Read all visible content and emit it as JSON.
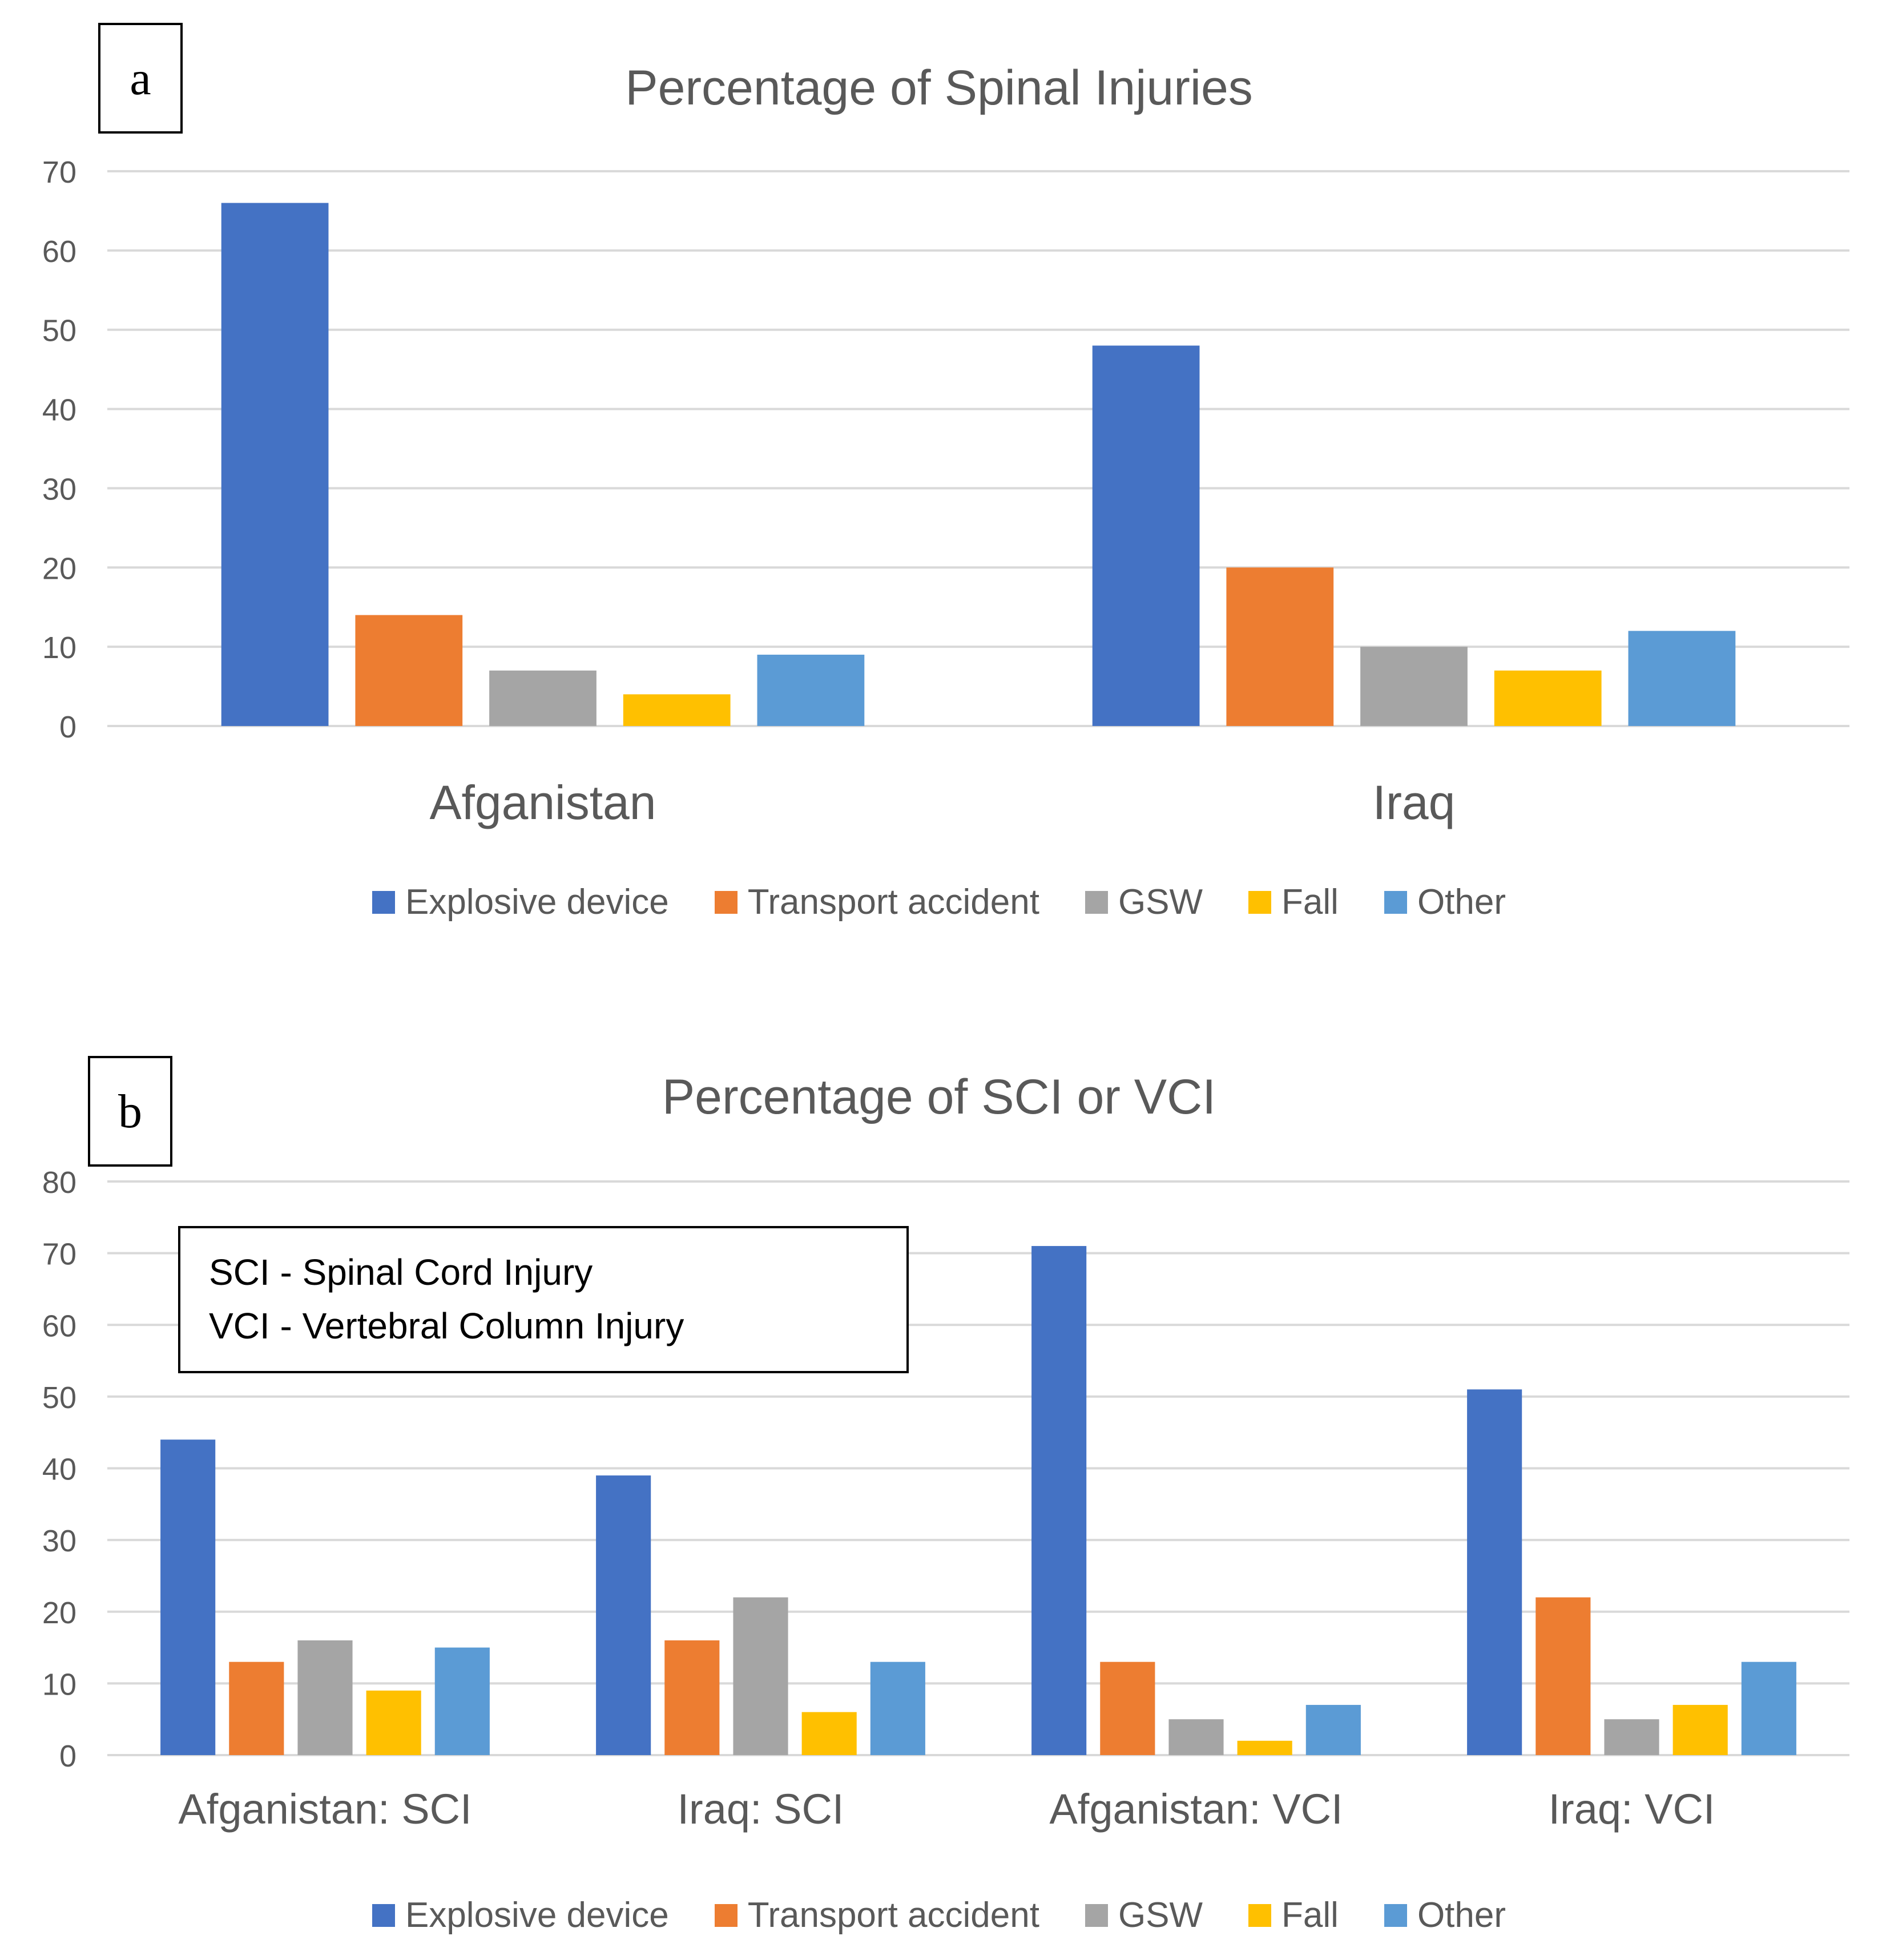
{
  "legend": [
    {
      "name": "Explosive device",
      "color": "#4472C4"
    },
    {
      "name": "Transport accident",
      "color": "#ED7D31"
    },
    {
      "name": "GSW",
      "color": "#A5A5A5"
    },
    {
      "name": "Fall",
      "color": "#FFC000"
    },
    {
      "name": "Other",
      "color": "#5B9BD5"
    }
  ],
  "panels": [
    {
      "label": "a"
    },
    {
      "label": "b",
      "note": [
        "SCI - Spinal Cord Injury",
        "VCI - Vertebral Column Injury"
      ]
    }
  ],
  "chart_data": [
    {
      "type": "bar",
      "title": "Percentage of Spinal Injuries",
      "xlabel": "",
      "ylabel": "",
      "ylim": [
        0,
        70
      ],
      "yticks": [
        0,
        10,
        20,
        30,
        40,
        50,
        60,
        70
      ],
      "grid": true,
      "legend_position": "bottom",
      "categories": [
        "Afganistan",
        "Iraq"
      ],
      "series": [
        {
          "name": "Explosive device",
          "color": "#4472C4",
          "values": [
            66,
            48
          ]
        },
        {
          "name": "Transport accident",
          "color": "#ED7D31",
          "values": [
            14,
            20
          ]
        },
        {
          "name": "GSW",
          "color": "#A5A5A5",
          "values": [
            7,
            10
          ]
        },
        {
          "name": "Fall",
          "color": "#FFC000",
          "values": [
            4,
            7
          ]
        },
        {
          "name": "Other",
          "color": "#5B9BD5",
          "values": [
            9,
            12
          ]
        }
      ]
    },
    {
      "type": "bar",
      "title": "Percentage of SCI or VCI",
      "xlabel": "",
      "ylabel": "",
      "ylim": [
        0,
        80
      ],
      "yticks": [
        0,
        10,
        20,
        30,
        40,
        50,
        60,
        70,
        80
      ],
      "grid": true,
      "legend_position": "bottom",
      "categories": [
        "Afganistan: SCI",
        "Iraq: SCI",
        "Afganistan: VCI",
        "Iraq: VCI"
      ],
      "series": [
        {
          "name": "Explosive device",
          "color": "#4472C4",
          "values": [
            44,
            39,
            71,
            51
          ]
        },
        {
          "name": "Transport accident",
          "color": "#ED7D31",
          "values": [
            13,
            16,
            13,
            22
          ]
        },
        {
          "name": "GSW",
          "color": "#A5A5A5",
          "values": [
            16,
            22,
            5,
            5
          ]
        },
        {
          "name": "Fall",
          "color": "#FFC000",
          "values": [
            9,
            6,
            2,
            7
          ]
        },
        {
          "name": "Other",
          "color": "#5B9BD5",
          "values": [
            15,
            13,
            7,
            13
          ]
        }
      ]
    }
  ]
}
